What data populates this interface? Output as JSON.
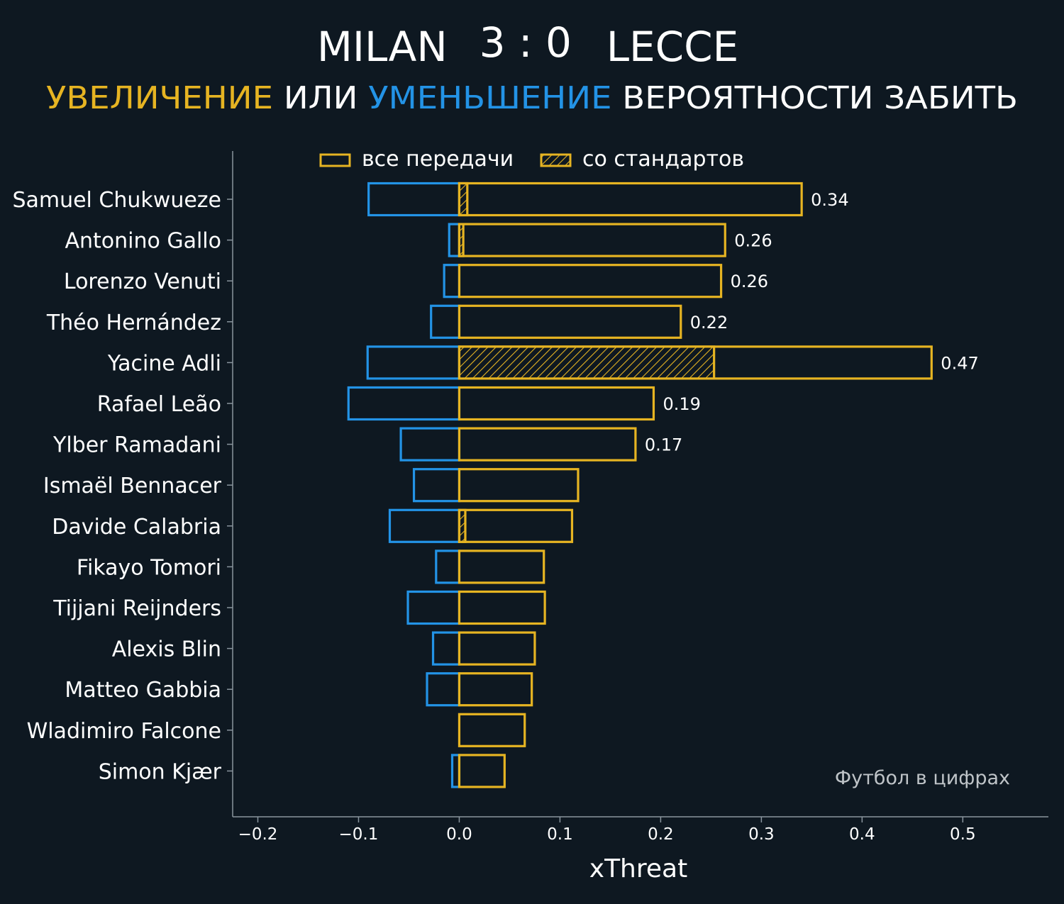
{
  "header": {
    "home_team": "MILAN",
    "score": "3 : 0",
    "away_team": "LECCE",
    "subtitle_increase": "УВЕЛИЧЕНИЕ",
    "subtitle_or": " ИЛИ ",
    "subtitle_decrease": "УМЕНЬШЕНИЕ",
    "subtitle_rest": " ВЕРОЯТНОСТИ ЗАБИТЬ"
  },
  "watermark": "Футбол в цифрах",
  "colors": {
    "background": "#0e1821",
    "positive": "#e6b422",
    "negative": "#2393e6",
    "text": "#ffffff",
    "axis": "#8a959e"
  },
  "chart_data": {
    "type": "bar",
    "orientation": "horizontal",
    "xlabel": "xThreat",
    "xlim": [
      -0.225,
      0.585
    ],
    "xticks": [
      -0.2,
      -0.1,
      0.0,
      0.1,
      0.2,
      0.3,
      0.4,
      0.5
    ],
    "xtick_labels": [
      "−0.2",
      "−0.1",
      "0.0",
      "0.1",
      "0.2",
      "0.3",
      "0.4",
      "0.5"
    ],
    "legend": {
      "placement": "top",
      "all_passes": "все передачи",
      "set_pieces": "со стандартов"
    },
    "categories": [
      "Samuel Chukwueze",
      "Antonino Gallo",
      "Lorenzo Venuti",
      "Théo Hernández",
      "Yacine Adli",
      "Rafael Leão",
      "Ylber Ramadani",
      "Ismaël Bennacer",
      "Davide Calabria",
      "Fikayo Tomori",
      "Tijjani Reijnders",
      "Alexis Blin",
      "Matteo Gabbia",
      "Wladimiro Falcone",
      "Simon Kjær"
    ],
    "series": [
      {
        "name": "все передачи",
        "positive": [
          0.34,
          0.264,
          0.26,
          0.22,
          0.469,
          0.193,
          0.175,
          0.118,
          0.112,
          0.084,
          0.085,
          0.075,
          0.072,
          0.065,
          0.045
        ],
        "negative": [
          -0.09,
          -0.01,
          -0.015,
          -0.028,
          -0.091,
          -0.11,
          -0.058,
          -0.045,
          -0.069,
          -0.023,
          -0.051,
          -0.026,
          -0.032,
          0.0,
          -0.007
        ]
      },
      {
        "name": "со стандартов",
        "positive": [
          0.008,
          0.004,
          0.0,
          0.0,
          0.253,
          0.0,
          0.0,
          0.0,
          0.006,
          0.0,
          0.0,
          0.0,
          0.0,
          0.0,
          0.0
        ]
      }
    ],
    "data_labels": [
      "0.34",
      "0.26",
      "0.26",
      "0.22",
      "0.47",
      "0.19",
      "0.17",
      "",
      "",
      "",
      "",
      "",
      "",
      "",
      ""
    ]
  }
}
